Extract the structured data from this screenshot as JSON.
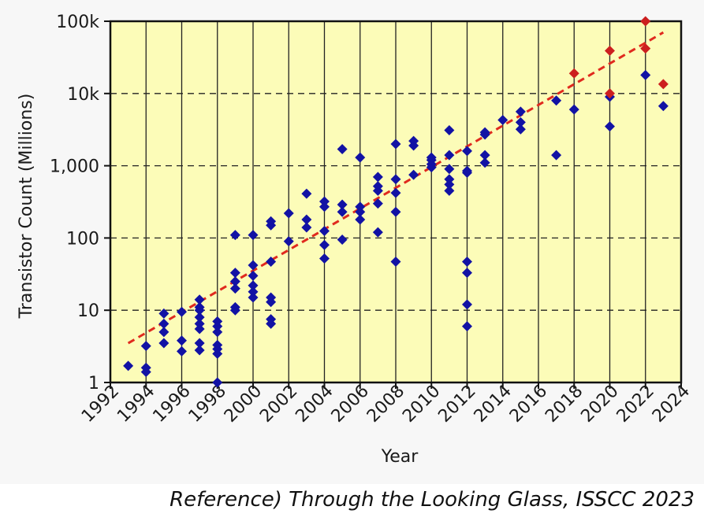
{
  "caption": "Reference) Through the Looking Glass, ISSCC 2023",
  "chart_data": {
    "type": "scatter",
    "title": "",
    "xlabel": "Year",
    "ylabel": "Transistor Count (Millions)",
    "xlim": [
      1992,
      2024
    ],
    "ylim": [
      1,
      100000
    ],
    "y_scale": "log",
    "x_tick_labels": [
      "1992",
      "1994",
      "1996",
      "1998",
      "2000",
      "2002",
      "2004",
      "2006",
      "2008",
      "2010",
      "2012",
      "2014",
      "2016",
      "2018",
      "2020",
      "2022",
      "2024"
    ],
    "y_tick_labels": [
      "1",
      "10",
      "100",
      "1,000",
      "10k",
      "100k"
    ],
    "grid": true,
    "plot_background": "#fcfcb8",
    "series": [
      {
        "color": "#1212a4",
        "points": [
          [
            1993,
            1.7
          ],
          [
            1994,
            1.4
          ],
          [
            1994,
            1.6
          ],
          [
            1994,
            3.2
          ],
          [
            1995,
            3.5
          ],
          [
            1995,
            5.0
          ],
          [
            1995,
            6.5
          ],
          [
            1995,
            9.0
          ],
          [
            1996,
            2.7
          ],
          [
            1996,
            3.8
          ],
          [
            1996,
            9.5
          ],
          [
            1997,
            2.8
          ],
          [
            1997,
            3.5
          ],
          [
            1997,
            5.5
          ],
          [
            1997,
            6.5
          ],
          [
            1997,
            8.0
          ],
          [
            1997,
            10
          ],
          [
            1997,
            11
          ],
          [
            1997,
            14
          ],
          [
            1998,
            1.0
          ],
          [
            1998,
            2.5
          ],
          [
            1998,
            2.9
          ],
          [
            1998,
            3.3
          ],
          [
            1998,
            5.0
          ],
          [
            1998,
            6.0
          ],
          [
            1998,
            7.0
          ],
          [
            1999,
            10
          ],
          [
            1999,
            11
          ],
          [
            1999,
            20
          ],
          [
            1999,
            25
          ],
          [
            1999,
            33
          ],
          [
            1999,
            110
          ],
          [
            2000,
            15
          ],
          [
            2000,
            18
          ],
          [
            2000,
            22
          ],
          [
            2000,
            30
          ],
          [
            2000,
            42
          ],
          [
            2000,
            110
          ],
          [
            2001,
            6.5
          ],
          [
            2001,
            7.5
          ],
          [
            2001,
            13
          ],
          [
            2001,
            15
          ],
          [
            2001,
            47
          ],
          [
            2001,
            150
          ],
          [
            2001,
            170
          ],
          [
            2002,
            90
          ],
          [
            2002,
            220
          ],
          [
            2003,
            140
          ],
          [
            2003,
            180
          ],
          [
            2003,
            410
          ],
          [
            2004,
            52
          ],
          [
            2004,
            80
          ],
          [
            2004,
            125
          ],
          [
            2004,
            270
          ],
          [
            2004,
            320
          ],
          [
            2005,
            95
          ],
          [
            2005,
            230
          ],
          [
            2005,
            290
          ],
          [
            2005,
            1700
          ],
          [
            2006,
            180
          ],
          [
            2006,
            230
          ],
          [
            2006,
            270
          ],
          [
            2006,
            1300
          ],
          [
            2007,
            120
          ],
          [
            2007,
            300
          ],
          [
            2007,
            450
          ],
          [
            2007,
            520
          ],
          [
            2007,
            700
          ],
          [
            2008,
            47
          ],
          [
            2008,
            230
          ],
          [
            2008,
            420
          ],
          [
            2008,
            650
          ],
          [
            2008,
            2000
          ],
          [
            2009,
            750
          ],
          [
            2009,
            1900
          ],
          [
            2009,
            2200
          ],
          [
            2010,
            950
          ],
          [
            2010,
            1050
          ],
          [
            2010,
            1200
          ],
          [
            2010,
            1300
          ],
          [
            2011,
            450
          ],
          [
            2011,
            550
          ],
          [
            2011,
            650
          ],
          [
            2011,
            900
          ],
          [
            2011,
            1400
          ],
          [
            2011,
            3100
          ],
          [
            2012,
            6.0
          ],
          [
            2012,
            12
          ],
          [
            2012,
            33
          ],
          [
            2012,
            47
          ],
          [
            2012,
            800
          ],
          [
            2012,
            850
          ],
          [
            2012,
            1600
          ],
          [
            2013,
            1100
          ],
          [
            2013,
            1400
          ],
          [
            2013,
            2700
          ],
          [
            2013,
            2900
          ],
          [
            2014,
            4300
          ],
          [
            2015,
            3200
          ],
          [
            2015,
            4000
          ],
          [
            2015,
            5600
          ],
          [
            2017,
            1400
          ],
          [
            2017,
            8000
          ],
          [
            2018,
            6000
          ],
          [
            2020,
            3500
          ],
          [
            2020,
            9000
          ],
          [
            2022,
            18000
          ],
          [
            2023,
            6700
          ]
        ]
      },
      {
        "color": "#cc1f1f",
        "points": [
          [
            2018,
            19000
          ],
          [
            2020,
            10000
          ],
          [
            2020,
            39000
          ],
          [
            2022,
            42000
          ],
          [
            2022,
            100000
          ],
          [
            2023,
            13500
          ]
        ]
      }
    ],
    "trend_line": {
      "color": "#e02a1e",
      "style": "dashed",
      "x": [
        1993,
        2023
      ],
      "y": [
        3.5,
        70000
      ]
    }
  }
}
